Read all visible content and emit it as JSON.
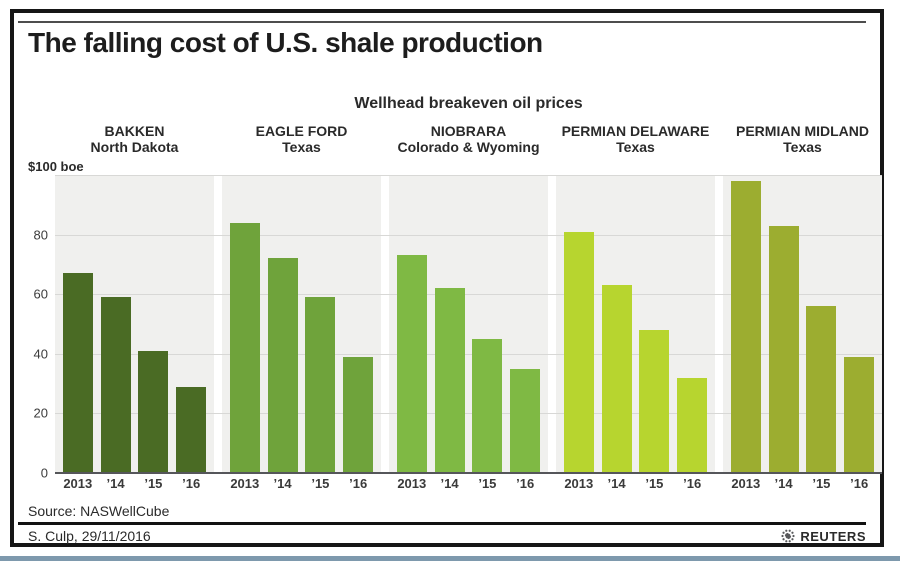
{
  "header": {
    "title": "The falling cost of U.S. shale production",
    "subtitle": "Wellhead breakeven oil prices"
  },
  "y_axis": {
    "top_label": "$100 boe",
    "ticks": [
      80,
      60,
      40,
      20,
      0
    ]
  },
  "chart_data": {
    "type": "bar",
    "title": "Wellhead breakeven oil prices",
    "categories": [
      "2013",
      "’14",
      "’15",
      "’16"
    ],
    "ylabel": "$100 boe",
    "ylim": [
      0,
      100
    ],
    "yticks": [
      0,
      20,
      40,
      60,
      80,
      100
    ],
    "grid": true,
    "legend": "none",
    "groups": [
      {
        "name": "BAKKEN",
        "location": "North Dakota",
        "color": "#4a6b24",
        "values": [
          67,
          59,
          41,
          29
        ]
      },
      {
        "name": "EAGLE FORD",
        "location": "Texas",
        "color": "#6fa33b",
        "values": [
          84,
          72,
          59,
          39
        ]
      },
      {
        "name": "NIOBRARA",
        "location": "Colorado & Wyoming",
        "color": "#7fb944",
        "values": [
          73,
          62,
          45,
          35
        ]
      },
      {
        "name": "PERMIAN DELAWARE",
        "location": "Texas",
        "color": "#b7d52f",
        "values": [
          81,
          63,
          48,
          32
        ]
      },
      {
        "name": "PERMIAN MIDLAND",
        "location": "Texas",
        "color": "#9cad30",
        "values": [
          98,
          83,
          56,
          39
        ]
      }
    ]
  },
  "footer": {
    "source": "Source: NASWellCube",
    "credit": "S. Culp, 29/11/2016",
    "logo_text": "REUTERS"
  }
}
